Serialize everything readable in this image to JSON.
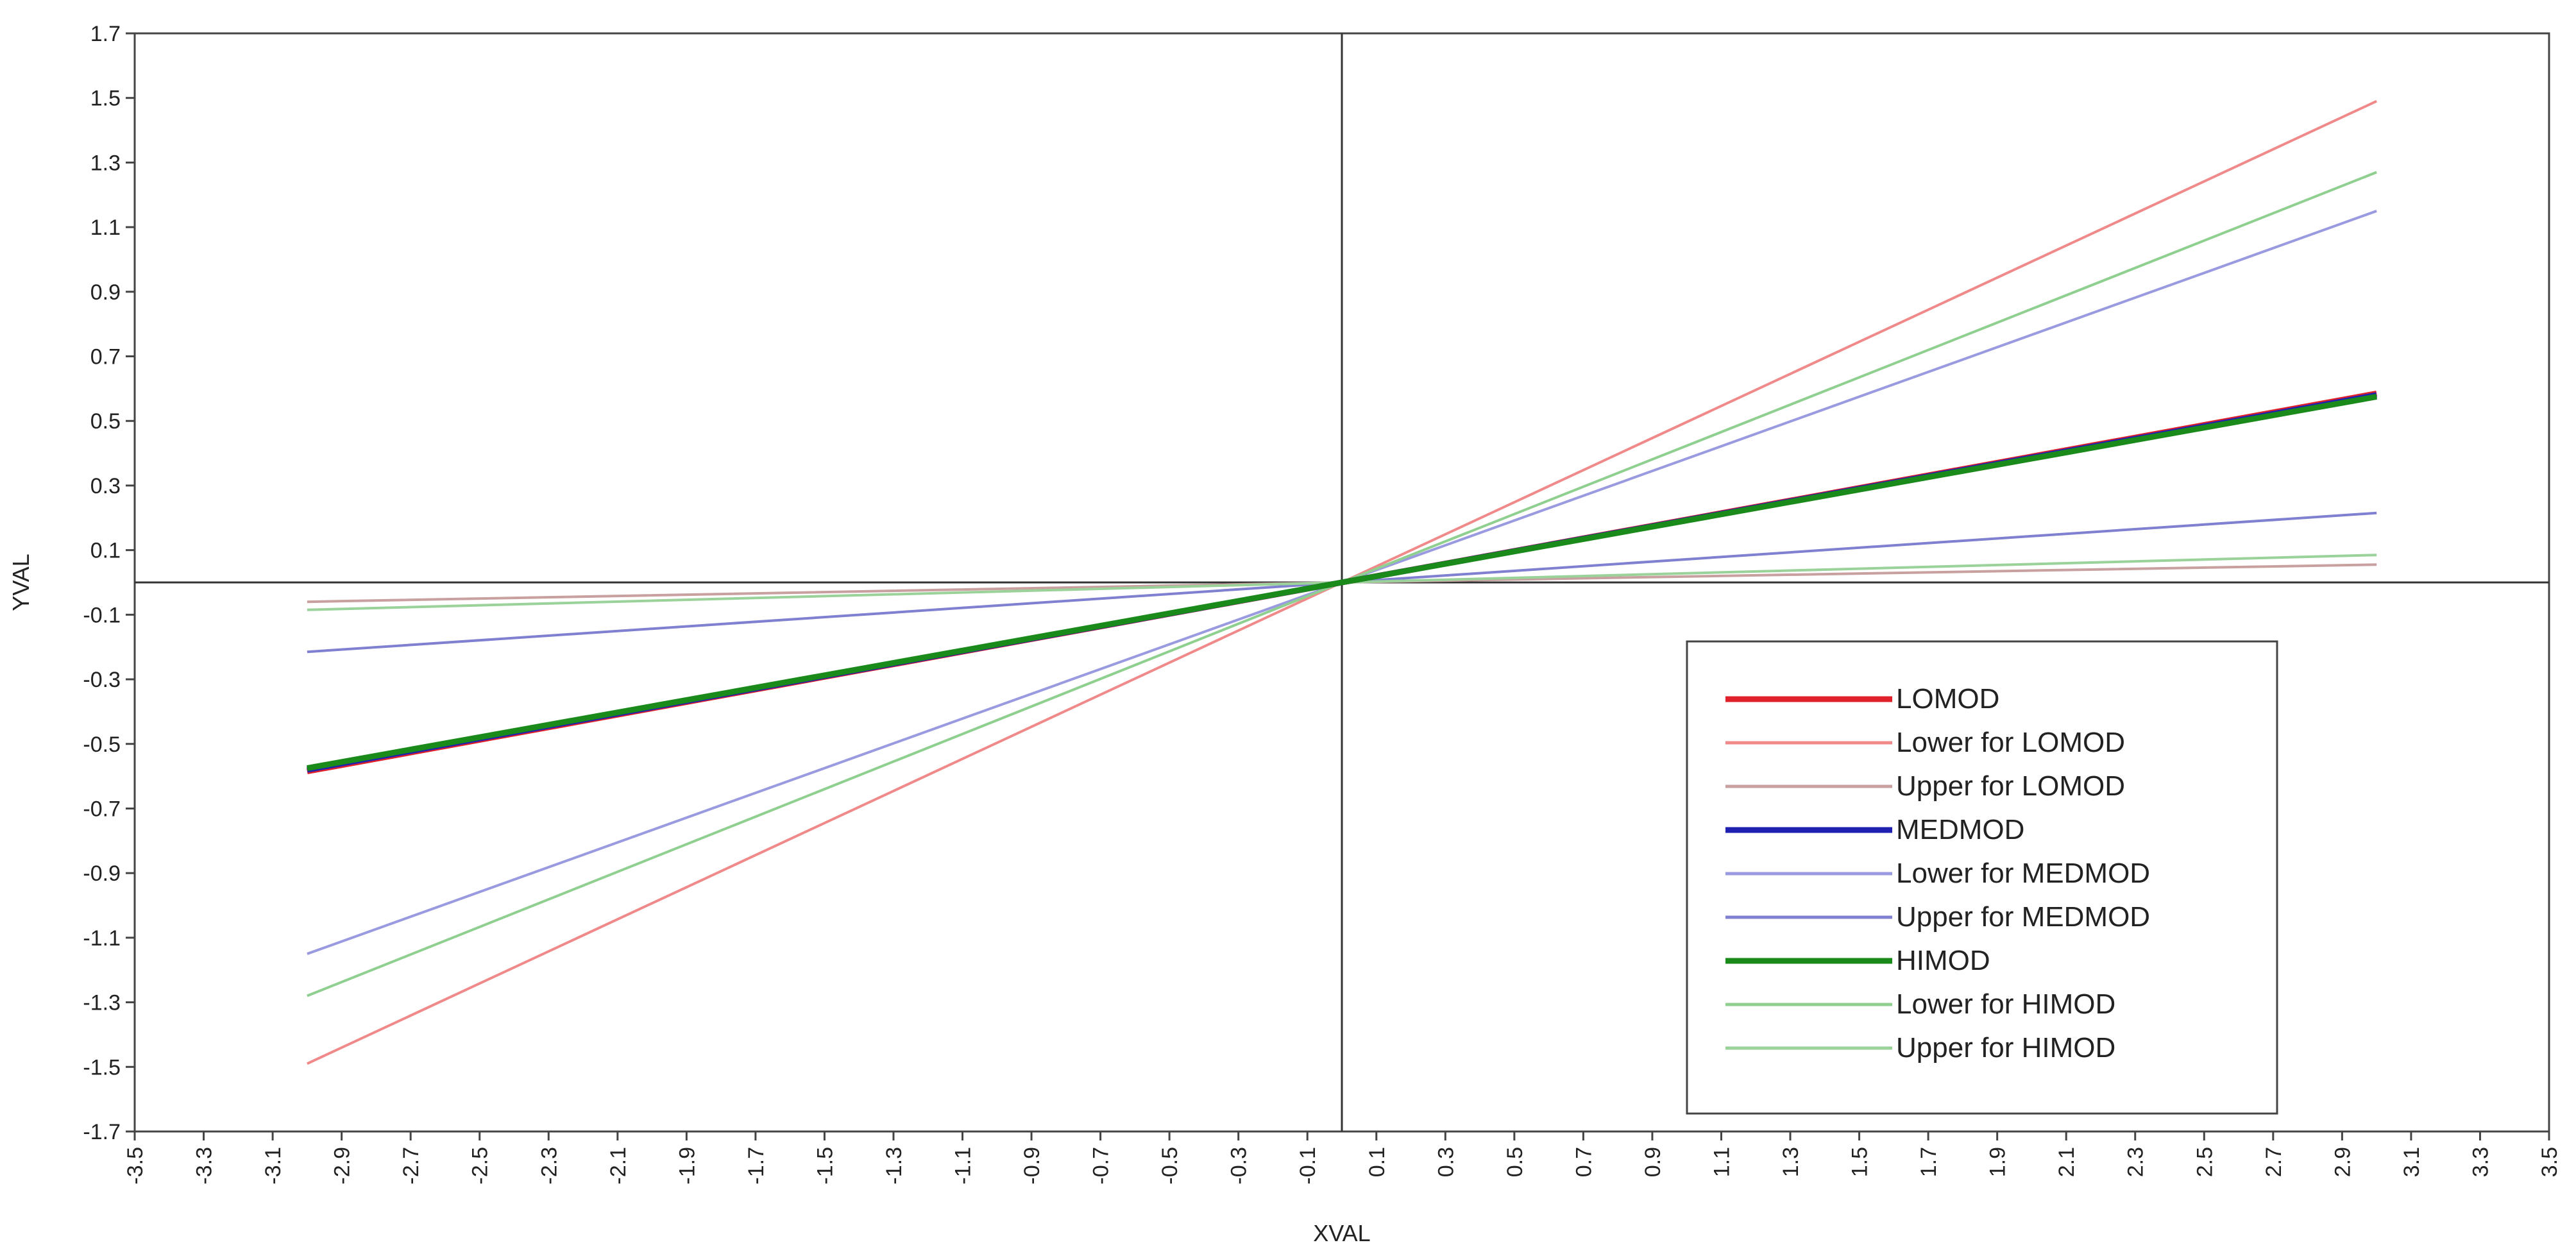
{
  "chart_data": {
    "type": "line",
    "title": "",
    "xlabel": "XVAL",
    "ylabel": "YVAL",
    "xlim": [
      -3.5,
      3.5
    ],
    "ylim": [
      -1.7,
      1.7
    ],
    "x_ticks": [
      "-3.5",
      "-3.3",
      "-3.1",
      "-2.9",
      "-2.7",
      "-2.5",
      "-2.3",
      "-2.1",
      "-1.9",
      "-1.7",
      "-1.5",
      "-1.3",
      "-1.1",
      "-0.9",
      "-0.7",
      "-0.5",
      "-0.3",
      "-0.1",
      "0.1",
      "0.3",
      "0.5",
      "0.7",
      "0.9",
      "1.1",
      "1.3",
      "1.5",
      "1.7",
      "1.9",
      "2.1",
      "2.3",
      "2.5",
      "2.7",
      "2.9",
      "3.1",
      "3.3",
      "3.5"
    ],
    "y_ticks": [
      "1.7",
      "1.5",
      "1.3",
      "1.1",
      "0.9",
      "0.7",
      "0.5",
      "0.3",
      "0.1",
      "-0.1",
      "-0.3",
      "-0.5",
      "-0.7",
      "-0.9",
      "-1.1",
      "-1.3",
      "-1.5",
      "-1.7"
    ],
    "grid": false,
    "reference_lines": {
      "x": 0,
      "y": 0
    },
    "legend_position": "bottom-right",
    "x": [
      -3.0,
      0.0,
      3.0
    ],
    "series": [
      {
        "name": "LOMOD",
        "values": [
          -0.585,
          0.0,
          0.585
        ],
        "color": "#e0202a",
        "width": "thick"
      },
      {
        "name": "Lower for LOMOD",
        "values": [
          -1.49,
          0.0,
          1.49
        ],
        "color": "#f08a8a",
        "width": "thin"
      },
      {
        "name": "Upper for LOMOD",
        "values": [
          -0.06,
          0.0,
          0.055
        ],
        "color": "#c9a0a0",
        "width": "thin"
      },
      {
        "name": "MEDMOD",
        "values": [
          -0.58,
          0.0,
          0.58
        ],
        "color": "#2020b0",
        "width": "thick"
      },
      {
        "name": "Lower for MEDMOD",
        "values": [
          -1.15,
          0.0,
          1.15
        ],
        "color": "#9a9ae0",
        "width": "thin"
      },
      {
        "name": "Upper for MEDMOD",
        "values": [
          -0.215,
          0.0,
          0.215
        ],
        "color": "#8080d0",
        "width": "thin"
      },
      {
        "name": "HIMOD",
        "values": [
          -0.575,
          0.0,
          0.575
        ],
        "color": "#1a8a1a",
        "width": "thick"
      },
      {
        "name": "Lower for HIMOD",
        "values": [
          -1.28,
          0.0,
          1.27
        ],
        "color": "#8fcf8f",
        "width": "thin"
      },
      {
        "name": "Upper for HIMOD",
        "values": [
          -0.085,
          0.0,
          0.085
        ],
        "color": "#9ad29a",
        "width": "thin"
      }
    ]
  }
}
